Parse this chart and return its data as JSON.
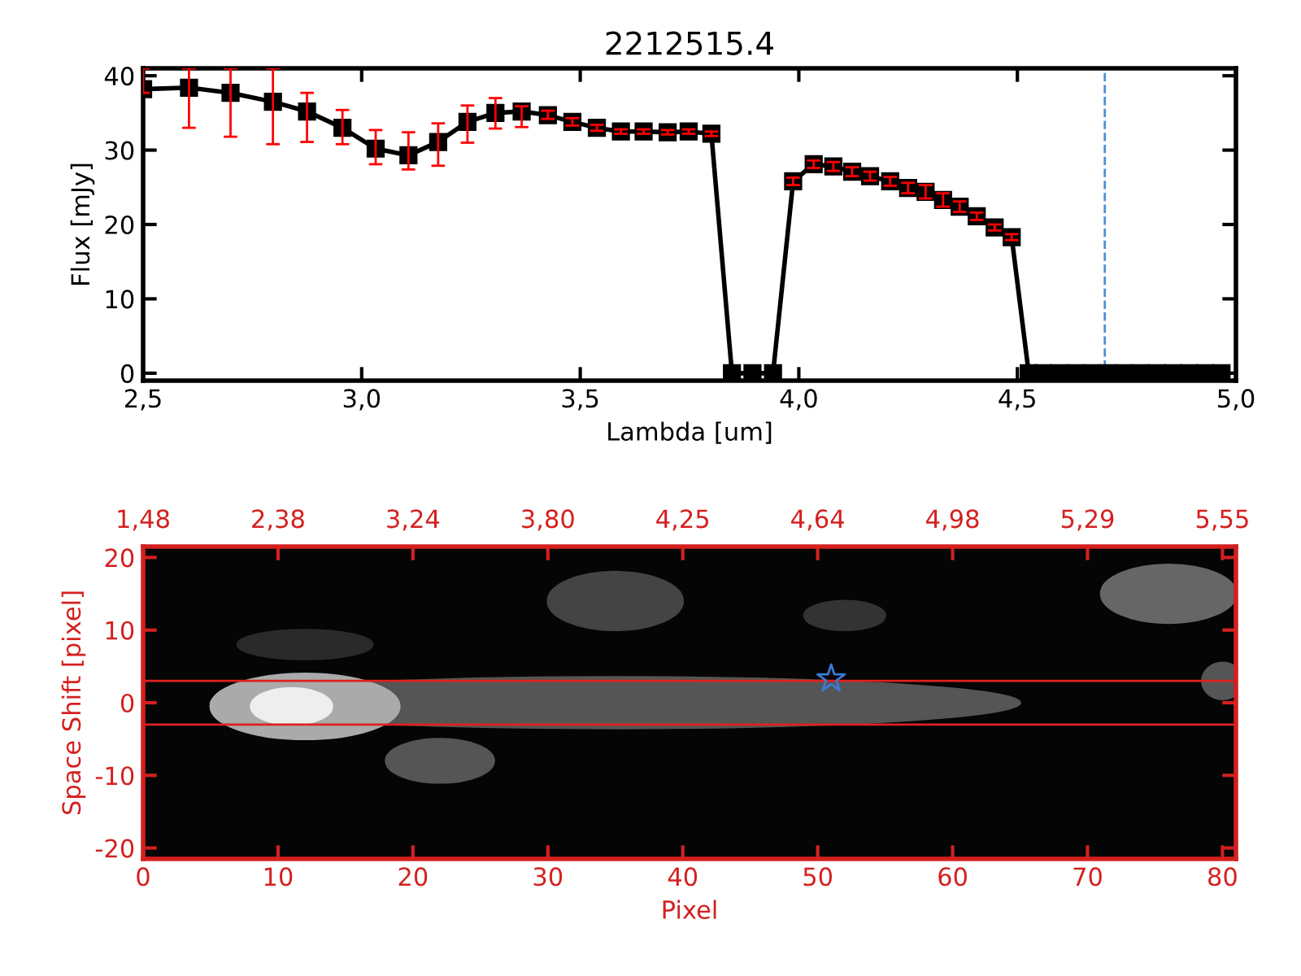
{
  "chart_data": [
    {
      "type": "line",
      "title": "2212515.4",
      "xlabel": "Lambda [um]",
      "ylabel": "Flux [mJy]",
      "xlim": [
        2.5,
        5.0
      ],
      "ylim": [
        -1,
        41
      ],
      "xticks": [
        {
          "value": 2.5,
          "label": "2,5"
        },
        {
          "value": 3.0,
          "label": "3,0"
        },
        {
          "value": 3.5,
          "label": "3,5"
        },
        {
          "value": 4.0,
          "label": "4,0"
        },
        {
          "value": 4.5,
          "label": "4,5"
        },
        {
          "value": 5.0,
          "label": "5,0"
        }
      ],
      "yticks": [
        0,
        10,
        20,
        30,
        40
      ],
      "grid": false,
      "legend": false,
      "marker": "square",
      "line_style": "solid",
      "series": [
        {
          "color": "#000000",
          "x": [
            2.5,
            2.605,
            2.7,
            2.797,
            2.875,
            2.956,
            3.032,
            3.107,
            3.175,
            3.242,
            3.306,
            3.366,
            3.426,
            3.482,
            3.538,
            3.593,
            3.645,
            3.7,
            3.748,
            3.8,
            3.847,
            3.894,
            3.941,
            3.987,
            4.034,
            4.079,
            4.122,
            4.163,
            4.209,
            4.25,
            4.29,
            4.33,
            4.368,
            4.407,
            4.448,
            4.487,
            4.526,
            4.559,
            4.596,
            4.633,
            4.671,
            4.708,
            4.745,
            4.782,
            4.819,
            4.856,
            4.893,
            4.93,
            4.967
          ],
          "values": [
            38.2,
            38.4,
            37.7,
            36.5,
            35.2,
            33.0,
            30.2,
            29.3,
            31.1,
            33.8,
            35.0,
            35.2,
            34.7,
            33.8,
            33.0,
            32.5,
            32.5,
            32.4,
            32.5,
            32.2,
            0,
            0,
            0,
            25.8,
            28.1,
            27.8,
            27.1,
            26.5,
            25.8,
            24.9,
            24.4,
            23.3,
            22.4,
            21.1,
            19.6,
            18.3,
            0,
            0,
            0,
            0,
            0,
            0,
            0,
            0,
            0,
            0,
            0,
            0,
            0
          ],
          "errors": [
            [
              37.7,
              41
            ],
            [
              33.0,
              41
            ],
            [
              31.8,
              41
            ],
            [
              30.8,
              41
            ],
            [
              31.1,
              37.7
            ],
            [
              30.8,
              35.4
            ],
            [
              28.1,
              32.7
            ],
            [
              27.4,
              32.4
            ],
            [
              27.9,
              33.6
            ],
            [
              31.0,
              36.0
            ],
            [
              32.9,
              37.0
            ],
            [
              33.1,
              35.9
            ],
            [
              34.2,
              35.3
            ],
            0.5,
            0.4,
            0.3,
            0.3,
            0.3,
            0.3,
            0.3,
            null,
            null,
            null,
            0.5,
            0.5,
            0.6,
            0.6,
            0.6,
            0.6,
            0.7,
            0.9,
            0.9,
            0.7,
            0.5,
            0.4,
            0.4,
            null,
            null,
            null,
            null,
            null,
            null,
            null,
            null,
            null,
            null,
            null,
            null,
            null
          ]
        }
      ],
      "ref_lines": [
        {
          "axis": "x",
          "value": 4.7,
          "color": "#4a90d9",
          "line_style": "dashed"
        }
      ]
    },
    {
      "type": "scatter",
      "xlabel": "Pixel",
      "ylabel": "Space Shift [pixel]",
      "xlim": [
        0,
        81
      ],
      "ylim": [
        -21.5,
        21.5
      ],
      "xticks": [
        0,
        10,
        20,
        30,
        40,
        50,
        60,
        70,
        80
      ],
      "yticks": [
        -20,
        -10,
        0,
        10,
        20
      ],
      "annotations": [
        "1,48",
        "2,38",
        "3,24",
        "3,80",
        "4,25",
        "4,64",
        "4,98",
        "5,29",
        "5,55"
      ],
      "grid": false,
      "legend": false,
      "marker": "star",
      "series": [
        {
          "color": "#3a7bd5",
          "x": [
            51
          ],
          "values": [
            3.3
          ]
        }
      ],
      "ref_lines": [
        {
          "axis": "y",
          "value": 3,
          "color": "#e02020",
          "line_style": "solid"
        },
        {
          "axis": "y",
          "value": -3,
          "color": "#e02020",
          "line_style": "solid"
        }
      ]
    }
  ]
}
